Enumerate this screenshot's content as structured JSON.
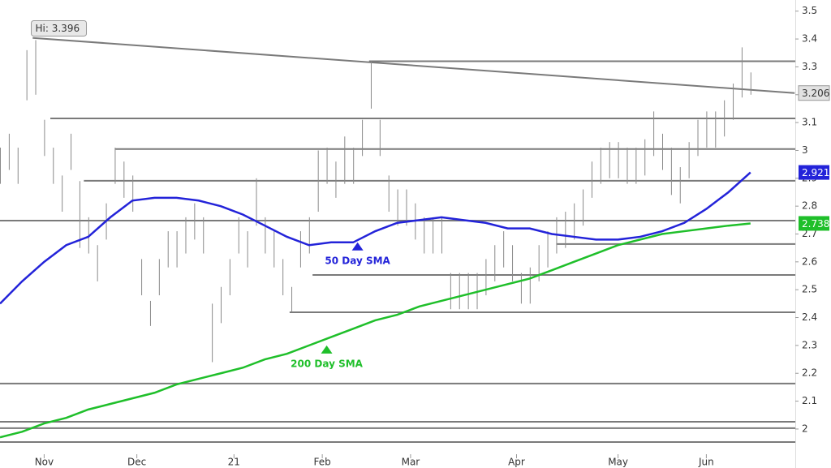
{
  "chart_data": {
    "type": "ohlc",
    "xlim": [
      0,
      180
    ],
    "ylim": [
      1.86,
      3.54
    ],
    "xticks": [
      {
        "value": 10,
        "label": "Nov"
      },
      {
        "value": 31,
        "label": "Dec"
      },
      {
        "value": 53,
        "label": "21"
      },
      {
        "value": 73,
        "label": "Feb"
      },
      {
        "value": 93,
        "label": "Mar"
      },
      {
        "value": 117,
        "label": "Apr"
      },
      {
        "value": 140,
        "label": "May"
      },
      {
        "value": 160,
        "label": "Jun"
      }
    ],
    "yticks": [
      2,
      2.1,
      2.2,
      2.3,
      2.4,
      2.5,
      2.6,
      2.7,
      2.8,
      2.9,
      3,
      3.1,
      3.2,
      3.3,
      3.4,
      3.5
    ],
    "bar_color": "#8a8a8a",
    "level_color": "#7a7a7a",
    "bars": {
      "x": [
        0,
        2,
        4,
        6,
        8,
        10,
        12,
        14,
        16,
        18,
        20,
        22,
        24,
        26,
        28,
        30,
        32,
        34,
        36,
        38,
        40,
        42,
        44,
        46,
        48,
        50,
        52,
        54,
        56,
        58,
        60,
        62,
        64,
        66,
        68,
        70,
        72,
        74,
        76,
        78,
        80,
        82,
        84,
        86,
        88,
        90,
        92,
        94,
        96,
        98,
        100,
        102,
        104,
        106,
        108,
        110,
        112,
        114,
        116,
        118,
        120,
        122,
        124,
        126,
        128,
        130,
        132,
        134,
        136,
        138,
        140,
        142,
        144,
        146,
        148,
        150,
        152,
        154,
        156,
        158,
        160,
        162,
        164,
        166,
        168,
        170
      ],
      "high": [
        3.01,
        3.06,
        3.01,
        3.36,
        3.396,
        3.11,
        3.01,
        2.91,
        3.06,
        2.89,
        2.76,
        2.66,
        2.81,
        3.01,
        2.96,
        2.91,
        2.61,
        2.46,
        2.61,
        2.71,
        2.71,
        2.76,
        2.81,
        2.76,
        2.45,
        2.51,
        2.61,
        2.76,
        2.71,
        2.9,
        2.76,
        2.71,
        2.61,
        2.51,
        2.71,
        2.76,
        3.0,
        3.01,
        2.96,
        3.05,
        3.01,
        3.11,
        3.32,
        3.11,
        2.91,
        2.86,
        2.86,
        2.81,
        2.76,
        2.76,
        2.76,
        2.56,
        2.56,
        2.56,
        2.56,
        2.61,
        2.66,
        2.71,
        2.66,
        2.56,
        2.58,
        2.66,
        2.71,
        2.76,
        2.78,
        2.81,
        2.86,
        2.96,
        3.01,
        3.03,
        3.03,
        3.01,
        3.01,
        3.04,
        3.14,
        3.06,
        3.01,
        2.94,
        3.03,
        3.11,
        3.14,
        3.14,
        3.18,
        3.24,
        3.37,
        3.28
      ],
      "low": [
        2.88,
        2.93,
        2.88,
        3.18,
        3.2,
        2.98,
        2.88,
        2.78,
        2.93,
        2.65,
        2.63,
        2.53,
        2.68,
        2.88,
        2.83,
        2.78,
        2.48,
        2.37,
        2.48,
        2.58,
        2.58,
        2.63,
        2.68,
        2.63,
        2.24,
        2.38,
        2.48,
        2.63,
        2.58,
        2.73,
        2.63,
        2.58,
        2.48,
        2.42,
        2.58,
        2.63,
        2.78,
        2.88,
        2.83,
        2.88,
        2.88,
        2.98,
        3.15,
        2.98,
        2.78,
        2.73,
        2.73,
        2.68,
        2.63,
        2.63,
        2.63,
        2.43,
        2.43,
        2.43,
        2.43,
        2.48,
        2.53,
        2.58,
        2.53,
        2.45,
        2.45,
        2.53,
        2.58,
        2.63,
        2.65,
        2.68,
        2.73,
        2.83,
        2.88,
        2.9,
        2.9,
        2.88,
        2.88,
        2.91,
        2.98,
        2.93,
        2.84,
        2.81,
        2.9,
        2.98,
        3.01,
        3.01,
        3.05,
        3.11,
        3.19,
        3.2
      ]
    },
    "series": [
      {
        "name": "50 Day SMA",
        "color": "#2323d9",
        "marker_x": 81,
        "marker_y": 2.67,
        "x": [
          0,
          5,
          10,
          15,
          20,
          25,
          30,
          35,
          40,
          45,
          50,
          55,
          60,
          65,
          70,
          75,
          80,
          85,
          90,
          95,
          100,
          105,
          110,
          115,
          120,
          125,
          130,
          135,
          140,
          145,
          150,
          155,
          160,
          165,
          170
        ],
        "values": [
          2.45,
          2.53,
          2.6,
          2.66,
          2.69,
          2.76,
          2.82,
          2.83,
          2.83,
          2.82,
          2.8,
          2.77,
          2.73,
          2.69,
          2.66,
          2.67,
          2.67,
          2.71,
          2.74,
          2.75,
          2.76,
          2.75,
          2.74,
          2.72,
          2.72,
          2.7,
          2.69,
          2.68,
          2.68,
          2.69,
          2.71,
          2.74,
          2.79,
          2.85,
          2.921
        ]
      },
      {
        "name": "200 Day SMA",
        "color": "#1fbf2a",
        "marker_x": 74,
        "marker_y": 2.3,
        "x": [
          0,
          5,
          10,
          15,
          20,
          25,
          30,
          35,
          40,
          45,
          50,
          55,
          60,
          65,
          70,
          75,
          80,
          85,
          90,
          95,
          100,
          105,
          110,
          115,
          120,
          125,
          130,
          135,
          140,
          145,
          150,
          155,
          160,
          165,
          170
        ],
        "values": [
          1.97,
          1.99,
          2.02,
          2.04,
          2.07,
          2.09,
          2.11,
          2.13,
          2.16,
          2.18,
          2.2,
          2.22,
          2.25,
          2.27,
          2.3,
          2.33,
          2.36,
          2.39,
          2.41,
          2.44,
          2.46,
          2.48,
          2.5,
          2.52,
          2.54,
          2.57,
          2.6,
          2.63,
          2.66,
          2.68,
          2.7,
          2.71,
          2.72,
          2.73,
          2.738
        ]
      }
    ],
    "trendline": {
      "x": [
        7.4,
        180
      ],
      "values": [
        3.404,
        3.206
      ]
    },
    "levels": [
      {
        "value": 3.32,
        "from": 83.6
      },
      {
        "value": 3.115,
        "from": 11.4
      },
      {
        "value": 3.005,
        "from": 26
      },
      {
        "value": 2.891,
        "from": 19
      },
      {
        "value": 2.748,
        "from": 0
      },
      {
        "value": 2.664,
        "from": 126
      },
      {
        "value": 2.553,
        "from": 70.8
      },
      {
        "value": 2.419,
        "from": 65.6
      },
      {
        "value": 2.163,
        "from": 0
      },
      {
        "value": 2.026,
        "from": 0
      },
      {
        "value": 2.003,
        "from": 0
      },
      {
        "value": 1.953,
        "from": 0
      }
    ],
    "high_label": {
      "text": "Hi: 3.396",
      "x": 8,
      "y": 3.396
    }
  }
}
